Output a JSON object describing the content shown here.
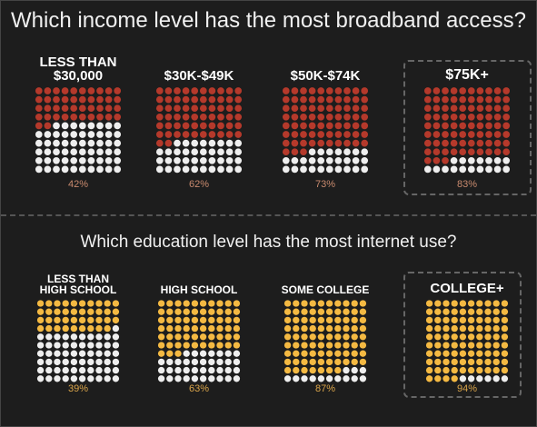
{
  "chart_data": [
    {
      "type": "waffle",
      "title": "Which income level has the most broadband access?",
      "categories": [
        "LESS THAN\n$30,000",
        "$30K-$49K",
        "$50K-$74K",
        "$75K+"
      ],
      "values": [
        42,
        62,
        73,
        83
      ],
      "value_labels": [
        "42%",
        "62%",
        "73%",
        "83%"
      ],
      "color": "#b5392b",
      "empty_color": "#eeeeee",
      "label_color": "#c98a6e",
      "highlight": 3
    },
    {
      "type": "waffle",
      "title": "Which education level has the most internet use?",
      "categories": [
        "LESS THAN\nHIGH SCHOOL",
        "HIGH SCHOOL",
        "SOME COLLEGE",
        "COLLEGE+"
      ],
      "values": [
        39,
        63,
        87,
        94
      ],
      "value_labels": [
        "39%",
        "63%",
        "87%",
        "94%"
      ],
      "color": "#f4b942",
      "empty_color": "#eeeeee",
      "label_color": "#d9a44a",
      "highlight": 3
    }
  ]
}
